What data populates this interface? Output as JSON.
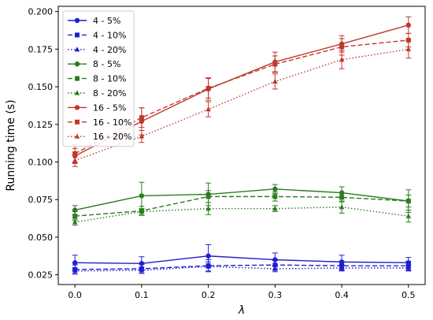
{
  "chart_data": {
    "type": "line",
    "title": "",
    "xlabel": "λ",
    "ylabel": "Running time (s)",
    "xlim": [
      -0.025,
      0.525
    ],
    "ylim": [
      0.0185,
      0.2035
    ],
    "x": [
      0.0,
      0.1,
      0.2,
      0.3,
      0.4,
      0.5
    ],
    "x_ticks": [
      0.0,
      0.1,
      0.2,
      0.3,
      0.4,
      0.5
    ],
    "x_tick_labels": [
      "0.0",
      "0.1",
      "0.2",
      "0.3",
      "0.4",
      "0.5"
    ],
    "y_ticks": [
      0.025,
      0.05,
      0.075,
      0.1,
      0.125,
      0.15,
      0.175,
      0.2
    ],
    "y_tick_labels": [
      "0.025",
      "0.050",
      "0.075",
      "0.100",
      "0.125",
      "0.150",
      "0.175",
      "0.200"
    ],
    "grid": false,
    "legend_position": "top-left",
    "series": [
      {
        "name": "4 - 5%",
        "color": "#1f1fcf",
        "linestyle": "solid",
        "marker": "circle",
        "values": [
          0.033,
          0.0325,
          0.0375,
          0.035,
          0.0335,
          0.033
        ],
        "errors": [
          0.005,
          0.0045,
          0.0075,
          0.0045,
          0.0045,
          0.0035
        ]
      },
      {
        "name": "4 - 10%",
        "color": "#1f1fcf",
        "linestyle": "dashed",
        "marker": "square",
        "values": [
          0.0285,
          0.029,
          0.031,
          0.0315,
          0.031,
          0.031
        ],
        "errors": [
          0.003,
          0.003,
          0.004,
          0.003,
          0.003,
          0.003
        ]
      },
      {
        "name": "4 - 20%",
        "color": "#1f1fcf",
        "linestyle": "dotted",
        "marker": "triangle",
        "values": [
          0.0275,
          0.028,
          0.0305,
          0.029,
          0.0295,
          0.0295
        ],
        "errors": [
          0.002,
          0.002,
          0.003,
          0.002,
          0.002,
          0.002
        ]
      },
      {
        "name": "8 - 5%",
        "color": "#2a7d1f",
        "linestyle": "solid",
        "marker": "circle",
        "values": [
          0.068,
          0.0775,
          0.0785,
          0.082,
          0.0795,
          0.074
        ],
        "errors": [
          0.003,
          0.009,
          0.0075,
          0.003,
          0.004,
          0.0075
        ]
      },
      {
        "name": "8 - 10%",
        "color": "#2a7d1f",
        "linestyle": "dashed",
        "marker": "square",
        "values": [
          0.064,
          0.0675,
          0.077,
          0.077,
          0.0765,
          0.074
        ],
        "errors": [
          0.003,
          0.003,
          0.004,
          0.003,
          0.003,
          0.004
        ]
      },
      {
        "name": "8 - 20%",
        "color": "#2a7d1f",
        "linestyle": "dotted",
        "marker": "triangle",
        "values": [
          0.06,
          0.067,
          0.069,
          0.069,
          0.07,
          0.064
        ],
        "errors": [
          0.002,
          0.002,
          0.004,
          0.002,
          0.004,
          0.004
        ]
      },
      {
        "name": "16 - 5%",
        "color": "#c0392b",
        "linestyle": "solid",
        "marker": "circle",
        "values": [
          0.104,
          0.127,
          0.1485,
          0.1665,
          0.1785,
          0.191
        ],
        "errors": [
          0.005,
          0.009,
          0.0075,
          0.0065,
          0.0055,
          0.0055
        ]
      },
      {
        "name": "16 - 10%",
        "color": "#c0392b",
        "linestyle": "dashed",
        "marker": "square",
        "values": [
          0.1055,
          0.1295,
          0.149,
          0.165,
          0.1765,
          0.181
        ],
        "errors": [
          0.006,
          0.0065,
          0.0065,
          0.0055,
          0.0055,
          0.0045
        ]
      },
      {
        "name": "16 - 20%",
        "color": "#c0392b",
        "linestyle": "dotted",
        "marker": "triangle",
        "values": [
          0.101,
          0.117,
          0.135,
          0.1535,
          0.168,
          0.175
        ],
        "errors": [
          0.004,
          0.004,
          0.005,
          0.005,
          0.006,
          0.006
        ]
      }
    ]
  }
}
